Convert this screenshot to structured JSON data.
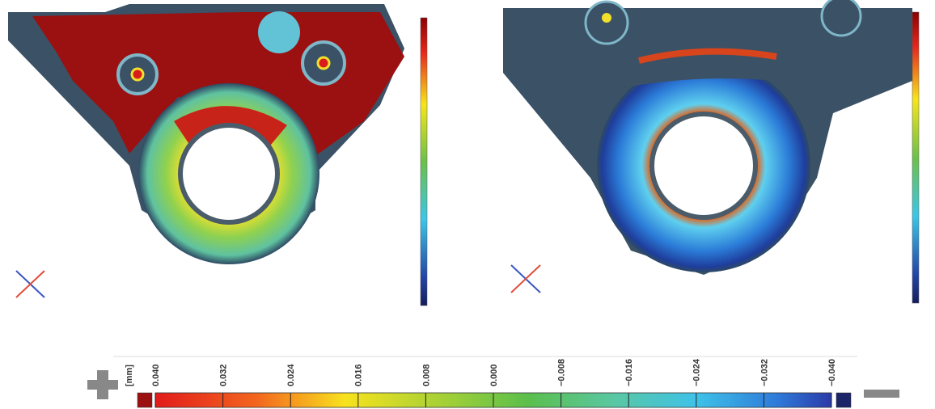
{
  "scale": {
    "unit": "[mm]",
    "ticks": [
      {
        "value": 0.04,
        "label": "0.040"
      },
      {
        "value": 0.032,
        "label": "0.032"
      },
      {
        "value": 0.024,
        "label": "0.024"
      },
      {
        "value": 0.016,
        "label": "0.016"
      },
      {
        "value": 0.008,
        "label": "0.008"
      },
      {
        "value": 0.0,
        "label": "0.000"
      },
      {
        "value": -0.008,
        "label": "−0.008"
      },
      {
        "value": -0.016,
        "label": "−0.016"
      },
      {
        "value": -0.024,
        "label": "−0.024"
      },
      {
        "value": -0.032,
        "label": "−0.032"
      },
      {
        "value": -0.04,
        "label": "−0.040"
      }
    ]
  }
}
